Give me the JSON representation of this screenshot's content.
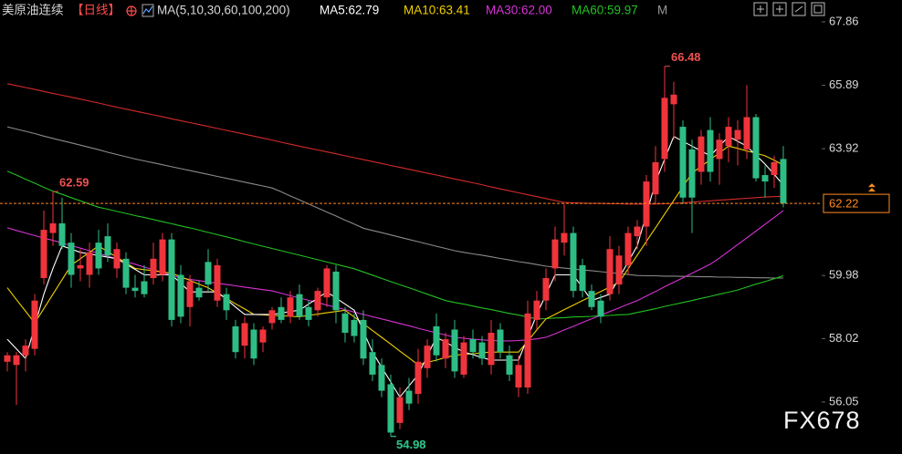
{
  "chart_data": {
    "type": "candlestick",
    "title": "美原油连续",
    "period": "【日线】",
    "ma_label": "MA(5,10,30,60,100,200)",
    "legend_overflow": "M",
    "watermark": "FX678",
    "up_color": "#f0343c",
    "down_color": "#2ebd85",
    "ylim": [
      54.66,
      68.54
    ],
    "yticks": [
      56.05,
      58.02,
      59.98,
      63.92,
      65.89,
      67.86
    ],
    "last_price": 62.22,
    "last_price_color": "#ff8a1f",
    "open": [
      57.3,
      57.2,
      57.5,
      57.7,
      59.9,
      61.3,
      61.6,
      61.0,
      60.2,
      60.0,
      61.0,
      61.2,
      60.2,
      60.5,
      59.6,
      59.8,
      59.9,
      60.0,
      61.1,
      60.0,
      59.0,
      59.6,
      60.4,
      59.2,
      59.4,
      58.4,
      57.8,
      58.3,
      57.9,
      58.5,
      59.0,
      58.7,
      59.4,
      59.0,
      58.9,
      59.3,
      60.1,
      58.8,
      58.6,
      58.6,
      57.6,
      57.2,
      56.6,
      55.4,
      56.4,
      56.3,
      57.1,
      58.4,
      57.4,
      58.3,
      56.9,
      58.0,
      57.9,
      57.2,
      58.3,
      57.5,
      56.5,
      56.5,
      58.6,
      59.2,
      60.2,
      61.0,
      61.3,
      60.3,
      59.5,
      59.2,
      59.4,
      59.7,
      60.3,
      61.2,
      61.5,
      62.5,
      63.6,
      65.3,
      64.6,
      63.9,
      63.2,
      64.5,
      63.6,
      64.0,
      64.2,
      63.9,
      64.9,
      63.1,
      63.1,
      63.6
    ],
    "high": [
      57.6,
      57.6,
      58.0,
      59.4,
      62.0,
      62.59,
      62.4,
      61.3,
      60.8,
      61.0,
      61.4,
      61.6,
      61.0,
      60.7,
      60.0,
      60.3,
      61.0,
      61.3,
      61.3,
      60.3,
      60.0,
      59.8,
      60.8,
      60.5,
      59.6,
      58.6,
      58.7,
      58.5,
      58.4,
      59.0,
      59.3,
      59.5,
      59.7,
      59.2,
      59.6,
      60.3,
      60.3,
      59.0,
      58.8,
      58.9,
      58.0,
      57.4,
      56.9,
      56.5,
      56.8,
      57.7,
      58.0,
      58.8,
      58.2,
      58.6,
      58.1,
      58.3,
      58.1,
      58.6,
      58.5,
      57.8,
      57.5,
      59.2,
      59.5,
      60.2,
      61.5,
      62.2,
      61.5,
      60.5,
      59.7,
      59.4,
      61.2,
      60.9,
      61.5,
      61.7,
      63.1,
      64.0,
      66.48,
      66.0,
      64.8,
      64.2,
      64.5,
      64.9,
      64.4,
      64.9,
      64.8,
      65.9,
      65.0,
      63.4,
      63.7,
      64.0
    ],
    "low": [
      57.0,
      55.96,
      57.0,
      57.5,
      59.7,
      60.9,
      60.8,
      59.6,
      59.8,
      59.6,
      60.0,
      60.4,
      59.9,
      59.4,
      59.3,
      59.3,
      59.7,
      59.8,
      58.4,
      58.5,
      58.4,
      59.2,
      59.5,
      59.0,
      58.6,
      57.4,
      57.4,
      57.2,
      57.6,
      58.3,
      58.5,
      58.5,
      58.6,
      58.4,
      58.7,
      59.0,
      58.5,
      57.9,
      57.9,
      57.2,
      56.7,
      56.2,
      54.98,
      55.2,
      55.8,
      56.0,
      56.8,
      57.3,
      57.1,
      56.8,
      56.8,
      57.4,
      57.2,
      56.9,
      57.4,
      56.7,
      56.2,
      56.3,
      58.3,
      58.9,
      59.8,
      60.6,
      59.3,
      59.3,
      58.9,
      58.5,
      59.2,
      59.4,
      60.0,
      60.8,
      60.9,
      62.2,
      63.2,
      64.2,
      62.2,
      61.3,
      62.8,
      62.9,
      62.8,
      63.5,
      63.4,
      63.6,
      62.9,
      62.4,
      62.7,
      62.1
    ],
    "close": [
      57.5,
      57.5,
      57.8,
      59.2,
      61.4,
      61.6,
      60.9,
      60.0,
      60.3,
      60.7,
      60.2,
      60.6,
      60.8,
      59.6,
      59.5,
      59.4,
      60.5,
      61.1,
      58.6,
      58.7,
      59.8,
      59.3,
      59.7,
      60.3,
      58.9,
      57.6,
      58.5,
      57.4,
      58.3,
      58.9,
      58.6,
      59.3,
      58.7,
      58.6,
      59.5,
      60.2,
      58.9,
      58.2,
      58.1,
      57.4,
      56.9,
      56.4,
      55.1,
      56.2,
      56.0,
      57.3,
      57.8,
      57.5,
      58.0,
      57.0,
      57.9,
      57.6,
      57.4,
      58.2,
      57.6,
      56.9,
      57.2,
      58.8,
      59.2,
      59.9,
      61.1,
      61.3,
      59.5,
      59.5,
      59.0,
      58.7,
      60.8,
      60.6,
      61.3,
      61.5,
      62.9,
      63.5,
      65.5,
      65.6,
      62.4,
      62.4,
      64.3,
      63.2,
      64.2,
      64.6,
      64.5,
      64.9,
      63.0,
      62.9,
      63.5,
      62.22
    ],
    "series": [
      {
        "color": "#d42a2a",
        "values": [
          65.94,
          65.88,
          65.82,
          65.76,
          65.7,
          65.64,
          65.58,
          65.52,
          65.46,
          65.4,
          65.34,
          65.27,
          65.21,
          65.15,
          65.09,
          65.03,
          64.97,
          64.91,
          64.85,
          64.79,
          64.73,
          64.67,
          64.61,
          64.55,
          64.49,
          64.43,
          64.37,
          64.31,
          64.25,
          64.19,
          64.12,
          64.06,
          64.0,
          63.94,
          63.88,
          63.82,
          63.76,
          63.7,
          63.64,
          63.58,
          63.52,
          63.46,
          63.4,
          63.34,
          63.28,
          63.22,
          63.16,
          63.1,
          63.04,
          62.98,
          62.92,
          62.86,
          62.8,
          62.73,
          62.67,
          62.61,
          62.55,
          62.49,
          62.43,
          62.37,
          62.31,
          62.25,
          62.24,
          62.23,
          62.22,
          62.22,
          62.21,
          62.21,
          62.2,
          62.2,
          62.2,
          62.2,
          62.21,
          62.22,
          62.24,
          62.26,
          62.28,
          62.3,
          62.32,
          62.34,
          62.36,
          62.38,
          62.4,
          62.42,
          62.43,
          62.44
        ]
      },
      {
        "color": "#8a8a8a",
        "values": [
          64.6,
          64.53,
          64.46,
          64.39,
          64.31,
          64.24,
          64.17,
          64.1,
          64.03,
          63.96,
          63.89,
          63.81,
          63.74,
          63.67,
          63.6,
          63.54,
          63.48,
          63.42,
          63.36,
          63.3,
          63.24,
          63.18,
          63.12,
          63.06,
          63.0,
          62.94,
          62.88,
          62.82,
          62.76,
          62.7,
          62.58,
          62.45,
          62.33,
          62.2,
          62.08,
          61.95,
          61.83,
          61.7,
          61.58,
          61.45,
          61.38,
          61.31,
          61.24,
          61.17,
          61.1,
          61.03,
          60.96,
          60.89,
          60.82,
          60.75,
          60.7,
          60.65,
          60.61,
          60.56,
          60.51,
          60.46,
          60.41,
          60.37,
          60.32,
          60.27,
          60.24,
          60.21,
          60.18,
          60.15,
          60.13,
          60.1,
          60.07,
          60.04,
          60.01,
          59.98,
          59.97,
          59.97,
          59.96,
          59.96,
          59.95,
          59.95,
          59.94,
          59.94,
          59.93,
          59.93,
          59.92,
          59.92,
          59.91,
          59.91,
          59.9,
          59.9
        ]
      },
      {
        "name": "MA60:59.97",
        "color": "#22c022",
        "values": [
          63.22,
          63.1,
          62.97,
          62.85,
          62.72,
          62.6,
          62.5,
          62.4,
          62.3,
          62.2,
          62.1,
          62.04,
          61.97,
          61.91,
          61.84,
          61.78,
          61.72,
          61.65,
          61.59,
          61.52,
          61.46,
          61.39,
          61.32,
          61.25,
          61.18,
          61.11,
          61.03,
          60.96,
          60.89,
          60.82,
          60.75,
          60.68,
          60.61,
          60.54,
          60.47,
          60.4,
          60.33,
          60.26,
          60.19,
          60.09,
          59.99,
          59.89,
          59.79,
          59.69,
          59.6,
          59.5,
          59.4,
          59.3,
          59.2,
          59.14,
          59.09,
          59.03,
          58.97,
          58.92,
          58.86,
          58.8,
          58.75,
          58.69,
          58.63,
          58.64,
          58.66,
          58.67,
          58.69,
          58.7,
          58.71,
          58.73,
          58.74,
          58.76,
          58.77,
          58.83,
          58.89,
          58.95,
          59.02,
          59.08,
          59.14,
          59.2,
          59.27,
          59.33,
          59.4,
          59.46,
          59.53,
          59.62,
          59.71,
          59.79,
          59.88,
          59.97
        ]
      },
      {
        "name": "MA30:62.00",
        "color": "#d633d6",
        "values": [
          61.46,
          61.38,
          61.3,
          61.22,
          61.14,
          61.07,
          60.99,
          60.91,
          60.83,
          60.75,
          60.67,
          60.58,
          60.5,
          60.41,
          60.33,
          60.24,
          60.16,
          60.07,
          59.99,
          59.9,
          59.86,
          59.82,
          59.78,
          59.74,
          59.7,
          59.66,
          59.62,
          59.58,
          59.54,
          59.5,
          59.43,
          59.35,
          59.28,
          59.21,
          59.14,
          59.06,
          58.99,
          58.92,
          58.84,
          58.77,
          58.7,
          58.63,
          58.56,
          58.49,
          58.42,
          58.34,
          58.27,
          58.2,
          58.13,
          58.06,
          58.03,
          58.0,
          57.98,
          57.96,
          57.95,
          57.95,
          57.96,
          57.98,
          58.01,
          58.06,
          58.17,
          58.29,
          58.4,
          58.52,
          58.63,
          58.75,
          58.86,
          58.97,
          59.09,
          59.2,
          59.34,
          59.48,
          59.63,
          59.77,
          59.91,
          60.05,
          60.19,
          60.33,
          60.52,
          60.73,
          60.94,
          61.15,
          61.36,
          61.57,
          61.78,
          62.0
        ]
      },
      {
        "name": "MA10:63.41",
        "color": "#f0d000",
        "values": [
          59.6,
          59.23,
          58.87,
          58.5,
          58.95,
          59.4,
          59.85,
          60.3,
          60.5,
          60.7,
          60.9,
          60.72,
          60.55,
          60.37,
          60.2,
          60.16,
          60.13,
          60.09,
          60.05,
          59.94,
          59.83,
          59.71,
          59.6,
          59.43,
          59.27,
          59.1,
          58.94,
          58.77,
          58.76,
          58.74,
          58.73,
          58.71,
          58.7,
          58.74,
          58.78,
          58.82,
          58.86,
          58.9,
          58.69,
          58.48,
          58.27,
          58.06,
          57.85,
          57.63,
          57.42,
          57.2,
          57.28,
          57.35,
          57.43,
          57.5,
          57.53,
          57.55,
          57.58,
          57.6,
          57.6,
          57.6,
          57.6,
          57.94,
          58.29,
          58.63,
          58.77,
          58.92,
          59.06,
          59.2,
          59.34,
          59.48,
          59.62,
          59.76,
          60.19,
          60.61,
          61.04,
          61.46,
          61.89,
          62.31,
          62.74,
          63.16,
          63.37,
          63.58,
          63.79,
          64.0,
          63.93,
          63.85,
          63.78,
          63.7,
          63.56,
          63.41
        ]
      },
      {
        "name": "MA5:62.79",
        "color": "#ffffff",
        "values": [
          58.0,
          57.7,
          57.4,
          58.4,
          59.4,
          60.2,
          60.9,
          60.8,
          60.7,
          60.65,
          60.6,
          60.55,
          60.5,
          60.33,
          60.17,
          60.0,
          60.0,
          60.0,
          60.0,
          59.74,
          59.47,
          59.47,
          59.47,
          59.47,
          59.24,
          59.0,
          58.77,
          58.77,
          58.77,
          58.77,
          58.81,
          58.86,
          58.9,
          59.09,
          59.28,
          59.47,
          59.28,
          59.09,
          58.9,
          58.25,
          57.6,
          57.13,
          56.67,
          56.2,
          56.55,
          56.9,
          57.48,
          58.06,
          57.91,
          57.75,
          57.6,
          57.52,
          57.43,
          57.35,
          57.35,
          57.35,
          57.35,
          58.06,
          58.77,
          59.39,
          60.0,
          60.0,
          60.0,
          59.6,
          59.2,
          59.3,
          59.4,
          59.9,
          60.4,
          60.9,
          61.89,
          62.88,
          63.59,
          64.3,
          64.15,
          64.0,
          63.85,
          63.7,
          64.0,
          64.3,
          64.15,
          64.0,
          63.72,
          63.44,
          63.12,
          62.79
        ]
      }
    ]
  }
}
